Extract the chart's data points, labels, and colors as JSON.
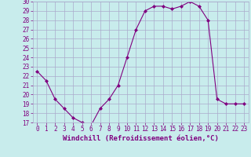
{
  "x": [
    0,
    1,
    2,
    3,
    4,
    5,
    6,
    7,
    8,
    9,
    10,
    11,
    12,
    13,
    14,
    15,
    16,
    17,
    18,
    19,
    20,
    21,
    22,
    23
  ],
  "y": [
    22.5,
    21.5,
    19.5,
    18.5,
    17.5,
    17.0,
    16.7,
    18.5,
    19.5,
    21.0,
    24.0,
    27.0,
    29.0,
    29.5,
    29.5,
    29.2,
    29.5,
    30.0,
    29.5,
    28.0,
    19.5,
    19.0,
    19.0,
    19.0
  ],
  "line_color": "#800080",
  "marker": "D",
  "marker_size": 2,
  "bg_color": "#c8ecec",
  "grid_color": "#aaaacc",
  "xlabel": "Windchill (Refroidissement éolien,°C)",
  "xlim": [
    -0.5,
    23.5
  ],
  "ylim": [
    17,
    30
  ],
  "xticks": [
    0,
    1,
    2,
    3,
    4,
    5,
    6,
    7,
    8,
    9,
    10,
    11,
    12,
    13,
    14,
    15,
    16,
    17,
    18,
    19,
    20,
    21,
    22,
    23
  ],
  "yticks": [
    17,
    18,
    19,
    20,
    21,
    22,
    23,
    24,
    25,
    26,
    27,
    28,
    29,
    30
  ],
  "font_color": "#800080",
  "tick_fontsize": 5.5,
  "xlabel_fontsize": 6.5
}
